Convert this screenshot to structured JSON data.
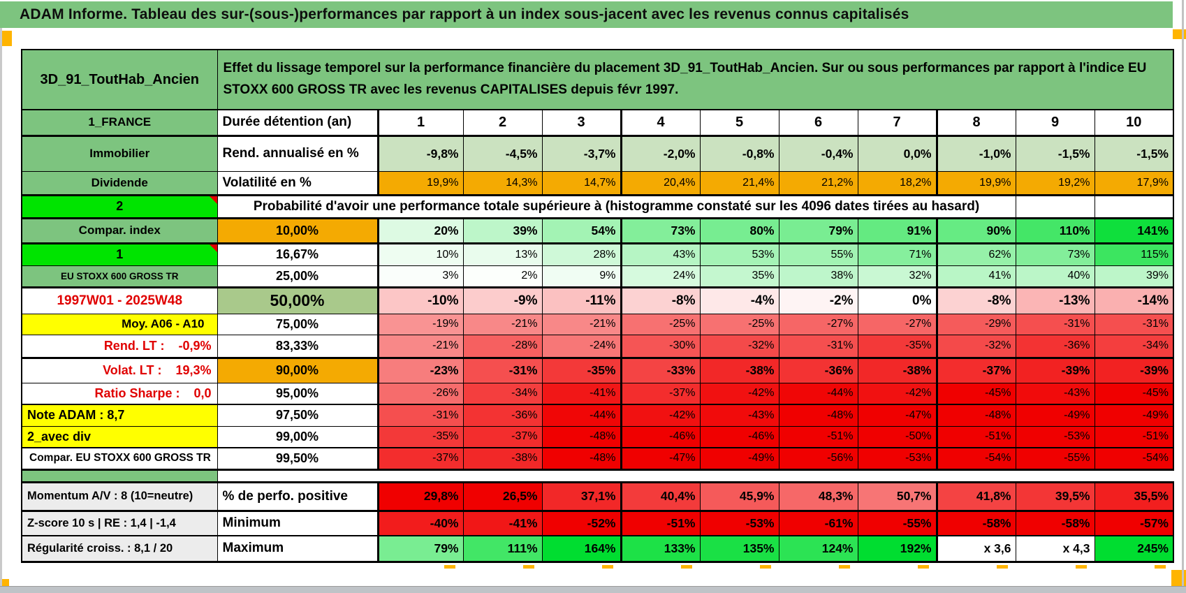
{
  "title": "ADAM Informe. Tableau des sur-(sous-)performances par rapport à un index sous-jacent avec les revenus connus capitalisés",
  "header": {
    "name": "3D_91_ToutHab_Ancien",
    "description": "Effet du lissage temporel sur la performance financière du placement 3D_91_ToutHab_Ancien. Sur ou sous performances par rapport à l'indice EU STOXX 600 GROSS TR avec les revenus CAPITALISES depuis févr 1997."
  },
  "columns": [
    "1",
    "2",
    "3",
    "4",
    "5",
    "6",
    "7",
    "8",
    "9",
    "10"
  ],
  "colors": {
    "label_green": "#7dc47f",
    "bright_green": "#00e400",
    "orange": "#f4aa02",
    "yellow": "#ffff00",
    "gray_label": "#ececec",
    "fixed_green": "#cbe2c0",
    "band_green": "#a9c98b",
    "red_full": "#f00000",
    "green_full": "#00dd30",
    "comment_marker_red": "#e00000",
    "marker_orange": "#ffb400"
  },
  "table": {
    "rows": [
      {
        "a": "1_FRANCE",
        "a_class": "a-green",
        "b": "Durée détention (an)",
        "b_class": "",
        "cells": [
          "1",
          "2",
          "3",
          "4",
          "5",
          "6",
          "7",
          "8",
          "9",
          "10"
        ],
        "scale": "header",
        "row_class": ""
      },
      {
        "a": "Immobilier",
        "a_class": "a-green",
        "b": "Rend. annualisé en %",
        "b_class": "",
        "cells": [
          "-9,8%",
          "-4,5%",
          "-3,7%",
          "-2,0%",
          "-0,8%",
          "-0,4%",
          "0,0%",
          "-1,0%",
          "-1,5%",
          "-1,5%"
        ],
        "scale": "fixedgreen",
        "bold": true,
        "row_class": "bt3"
      },
      {
        "a": "Dividende",
        "a_class": "a-green",
        "b": "Volatilité en %",
        "b_class": "",
        "cells": [
          "19,9%",
          "14,3%",
          "14,7%",
          "20,4%",
          "21,4%",
          "21,2%",
          "18,2%",
          "19,9%",
          "19,2%",
          "17,9%"
        ],
        "scale": "orange",
        "row_class": ""
      },
      {
        "a": "2",
        "a_class": "a-bright",
        "note": true,
        "span": "Probabilité d'avoir une performance totale supérieure à (histogramme constaté sur les 4096 dates tirées au hasard)",
        "row_class": "bt3"
      },
      {
        "a": "Compar. index",
        "a_class": "a-green",
        "b": "10,00%",
        "b_class": "b-center b-orange",
        "cells": [
          "20%",
          "39%",
          "54%",
          "73%",
          "80%",
          "79%",
          "91%",
          "90%",
          "110%",
          "141%"
        ],
        "scale": "green",
        "bold": true,
        "row_class": "bt3"
      },
      {
        "a": "1",
        "a_class": "a-bright",
        "note": true,
        "b": "16,67%",
        "b_class": "b-center",
        "cells": [
          "10%",
          "13%",
          "28%",
          "43%",
          "53%",
          "55%",
          "71%",
          "62%",
          "73%",
          "115%"
        ],
        "scale": "green",
        "row_class": "bt3"
      },
      {
        "a": "EU STOXX 600 GROSS TR",
        "a_class": "a-green a-small",
        "b": "25,00%",
        "b_class": "b-center",
        "cells": [
          "3%",
          "2%",
          "9%",
          "24%",
          "35%",
          "38%",
          "32%",
          "41%",
          "40%",
          "39%"
        ],
        "scale": "green",
        "row_class": ""
      },
      {
        "a": "1997W01 - 2025W48",
        "a_class": "a-redtext",
        "b": "50,00%",
        "b_class": "b-center b-band",
        "cells": [
          "-10%",
          "-9%",
          "-11%",
          "-8%",
          "-4%",
          "-2%",
          "0%",
          "-8%",
          "-13%",
          "-14%"
        ],
        "scale": "red",
        "bold": true,
        "big": true,
        "row_class": "bt3"
      },
      {
        "a": "Moy. A06 - A10",
        "a_class": "a-yellow a-right",
        "b": "75,00%",
        "b_class": "b-center",
        "cells": [
          "-19%",
          "-21%",
          "-21%",
          "-25%",
          "-25%",
          "-27%",
          "-27%",
          "-29%",
          "-31%",
          "-31%"
        ],
        "scale": "red",
        "row_class": ""
      },
      {
        "a": "Rend. LT :    -0,9%",
        "a_class": "a-redlabel",
        "b": "83,33%",
        "b_class": "b-center",
        "cells": [
          "-21%",
          "-28%",
          "-24%",
          "-30%",
          "-32%",
          "-31%",
          "-35%",
          "-32%",
          "-36%",
          "-34%"
        ],
        "scale": "red",
        "row_class": ""
      },
      {
        "a": "Volat. LT :    19,3%",
        "a_class": "a-redlabel",
        "b": "90,00%",
        "b_class": "b-center b-orange",
        "cells": [
          "-23%",
          "-31%",
          "-35%",
          "-33%",
          "-38%",
          "-36%",
          "-38%",
          "-37%",
          "-39%",
          "-39%"
        ],
        "scale": "red",
        "bold": true,
        "row_class": "bt3"
      },
      {
        "a": "Ratio Sharpe :    0,0",
        "a_class": "a-redlabel",
        "b": "95,00%",
        "b_class": "b-center",
        "cells": [
          "-26%",
          "-34%",
          "-41%",
          "-37%",
          "-42%",
          "-44%",
          "-42%",
          "-45%",
          "-43%",
          "-45%"
        ],
        "scale": "red",
        "row_class": ""
      },
      {
        "a": "Note ADAM : 8,7",
        "a_class": "a-yellow a-left",
        "b": "97,50%",
        "b_class": "b-center",
        "cells": [
          "-31%",
          "-36%",
          "-44%",
          "-42%",
          "-43%",
          "-48%",
          "-47%",
          "-48%",
          "-49%",
          "-49%"
        ],
        "scale": "red",
        "row_class": "bt2"
      },
      {
        "a": "2_avec div",
        "a_class": "a-yellow a-left",
        "b": "99,00%",
        "b_class": "b-center",
        "cells": [
          "-35%",
          "-37%",
          "-48%",
          "-46%",
          "-46%",
          "-51%",
          "-50%",
          "-51%",
          "-53%",
          "-51%"
        ],
        "scale": "red",
        "row_class": ""
      },
      {
        "a": "Compar. EU STOXX 600 GROSS TR",
        "a_class": "a-whitebold",
        "b": "99,50%",
        "b_class": "b-center",
        "cells": [
          "-37%",
          "-38%",
          "-48%",
          "-47%",
          "-49%",
          "-56%",
          "-53%",
          "-54%",
          "-55%",
          "-54%"
        ],
        "scale": "red",
        "row_class": "bt2 bb3"
      },
      {
        "gap": true
      },
      {
        "a": "Momentum A/V : 8 (10=neutre)",
        "a_class": "a-gray",
        "b": "% de perfo. positive",
        "b_class": "",
        "cells": [
          "29,8%",
          "26,5%",
          "37,1%",
          "40,4%",
          "45,9%",
          "48,3%",
          "50,7%",
          "41,8%",
          "39,5%",
          "35,5%"
        ],
        "scale": "perfpos",
        "bold": true,
        "row_class": "bt3"
      },
      {
        "a": "Z-score 10 s | RE : 1,4 | -1,4",
        "a_class": "a-gray",
        "b": "Minimum",
        "b_class": "",
        "cells": [
          "-40%",
          "-41%",
          "-52%",
          "-51%",
          "-53%",
          "-61%",
          "-55%",
          "-58%",
          "-58%",
          "-57%"
        ],
        "scale": "red",
        "bold": true,
        "row_class": "bt3"
      },
      {
        "a": "Régularité croiss. : 8,1 / 20",
        "a_class": "a-gray",
        "b": "Maximum",
        "b_class": "",
        "cells": [
          "79%",
          "111%",
          "164%",
          "133%",
          "135%",
          "124%",
          "192%",
          "x 3,6",
          "x 4,3",
          "245%"
        ],
        "scale": "green",
        "bold": true,
        "row_class": "bt2 bb3"
      }
    ]
  }
}
